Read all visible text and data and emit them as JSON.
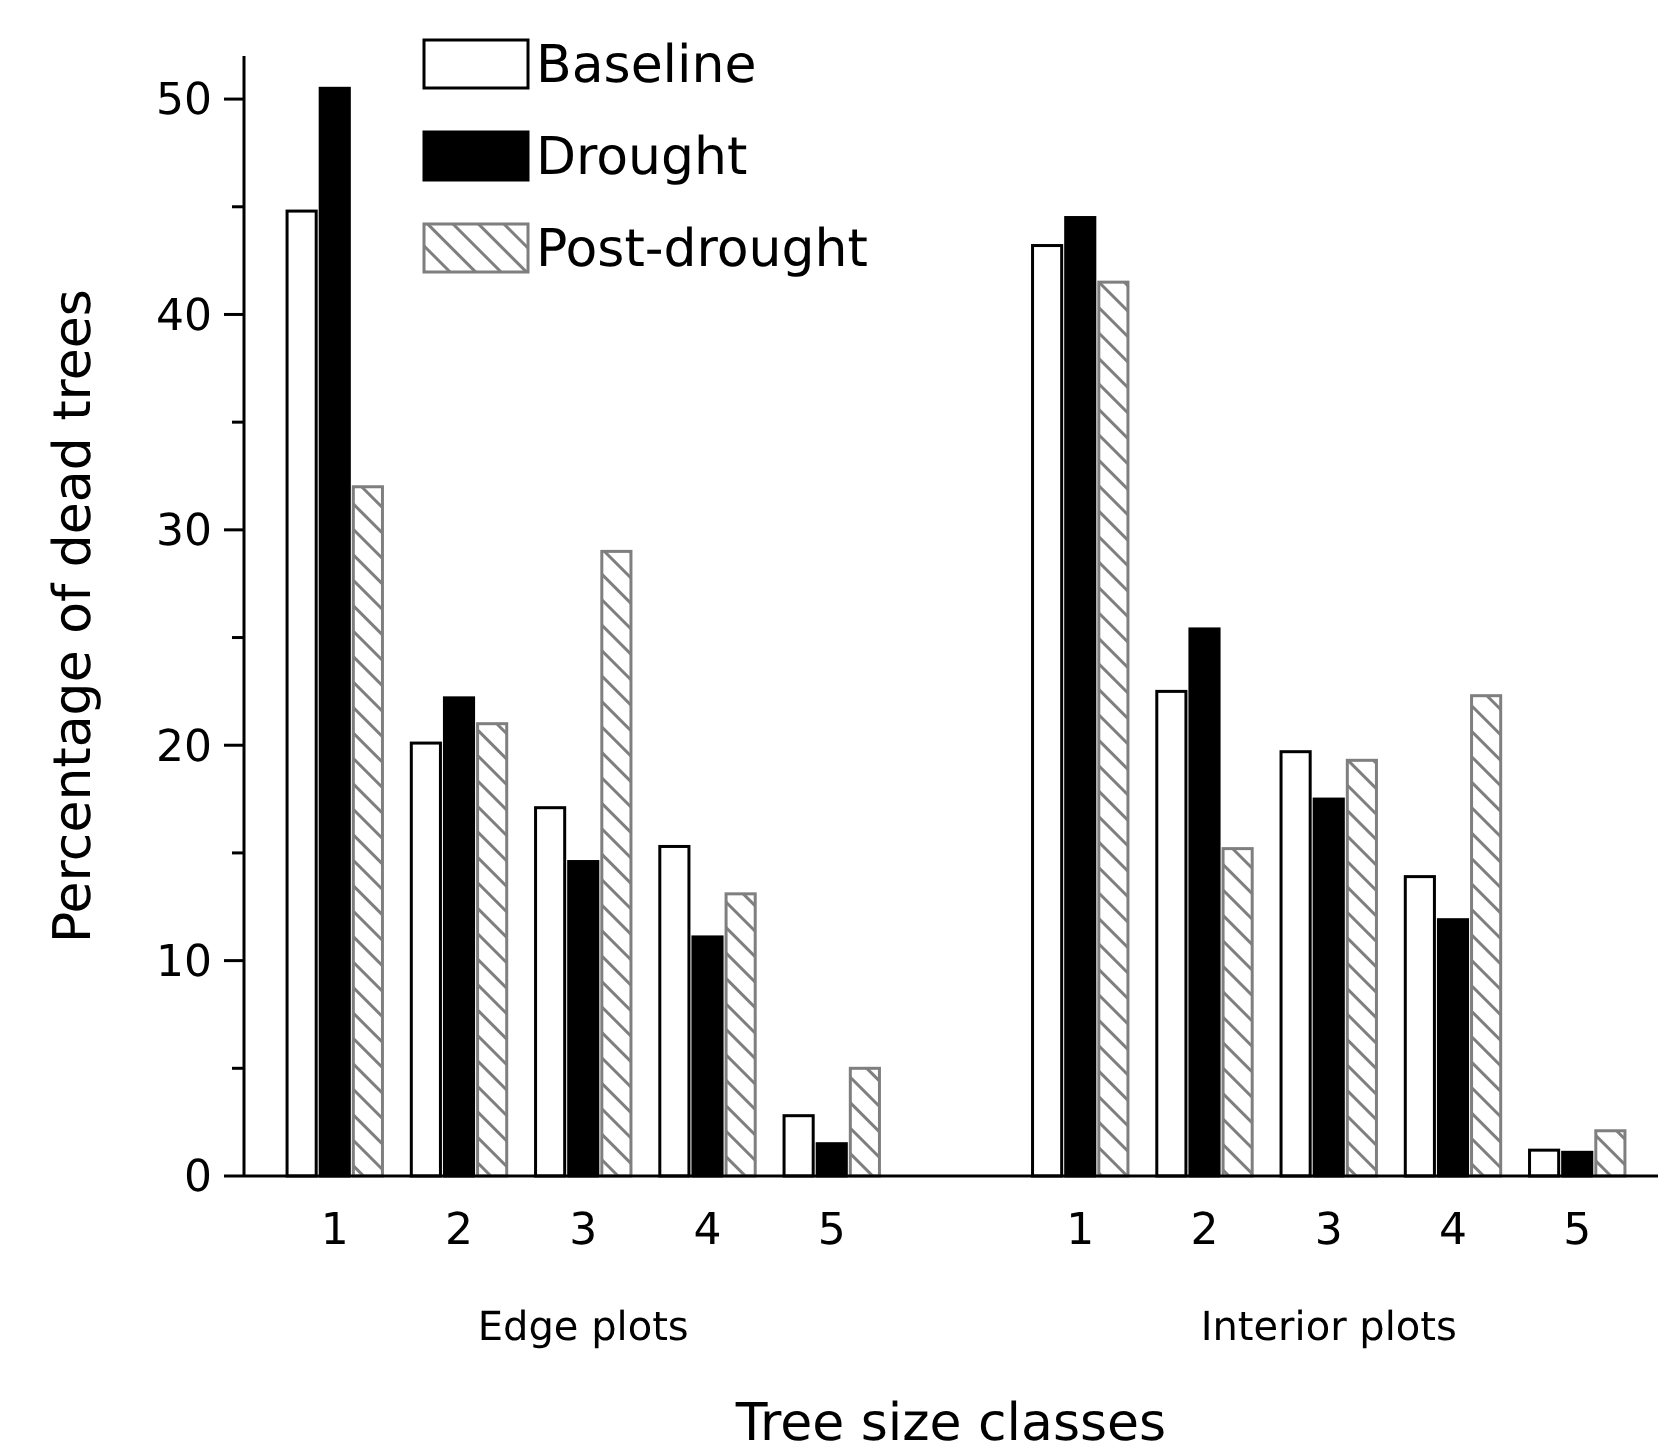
{
  "chart_data": {
    "type": "bar",
    "xlabel": "Tree size classes",
    "ylabel": "Percentage of dead trees",
    "categories": [
      "1",
      "2",
      "3",
      "4",
      "5",
      null,
      "1",
      "2",
      "3",
      "4",
      "5"
    ],
    "series": [
      {
        "name": "Baseline",
        "color": "#ffffff",
        "values": [
          44.8,
          20.1,
          17.1,
          15.3,
          2.8,
          null,
          43.2,
          22.5,
          19.7,
          13.9,
          1.2
        ]
      },
      {
        "name": "Drought",
        "color": "#000000",
        "values": [
          50.5,
          22.2,
          14.6,
          11.1,
          1.5,
          null,
          44.5,
          25.4,
          17.5,
          11.9,
          1.1
        ]
      },
      {
        "name": "Post-drought",
        "color": "#7f7f7f",
        "values": [
          32.0,
          21.0,
          29.0,
          13.1,
          5.0,
          null,
          41.5,
          15.2,
          19.3,
          22.3,
          2.1
        ]
      }
    ],
    "ylim": [
      0,
      52
    ],
    "yticks": [
      0,
      {
        "value": 5,
        "label": null
      },
      10,
      {
        "value": 15,
        "label": null
      },
      20,
      {
        "value": 25,
        "label": null
      },
      30,
      {
        "value": 35,
        "label": null
      },
      40,
      {
        "value": 45,
        "label": null
      },
      50
    ],
    "annotations": [
      "Edge plots",
      "Interior plots"
    ],
    "legend": "top left",
    "grid": false
  }
}
